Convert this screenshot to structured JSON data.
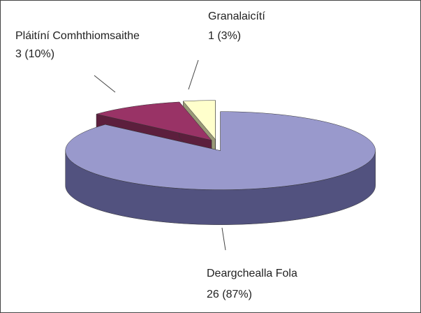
{
  "chart_data": {
    "type": "pie3d",
    "categories": [
      "Deargchealla Fola",
      "Pláitíní Comhthiomsaithe",
      "Granalaicítí"
    ],
    "values": [
      26,
      3,
      1
    ],
    "value_labels": [
      "26 (87%)",
      "3 (10%)",
      "1 (3%)"
    ],
    "colors": [
      "#9999cc",
      "#993366",
      "#ffffcc"
    ],
    "side_colors": [
      "#52527f",
      "#5c1f3d",
      "#9a9a78"
    ]
  }
}
